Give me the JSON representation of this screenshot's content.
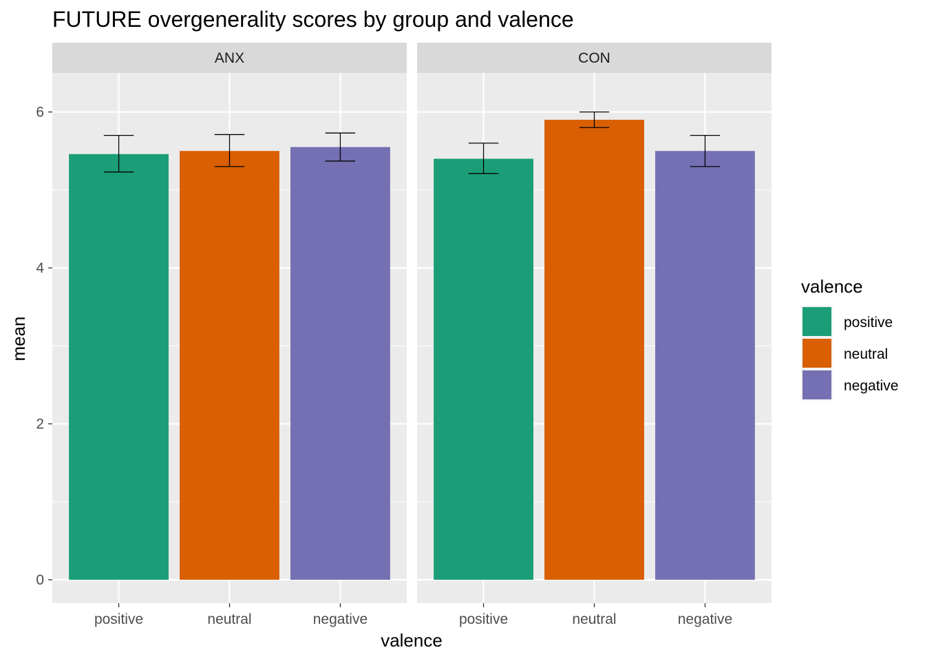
{
  "chart_data": {
    "type": "bar",
    "title": "FUTURE overgenerality scores by group and valence",
    "xlabel": "valence",
    "ylabel": "mean",
    "ylim": [
      -0.3,
      6.5
    ],
    "yticks": [
      0,
      2,
      4,
      6
    ],
    "categories": [
      "positive",
      "neutral",
      "negative"
    ],
    "colors": {
      "positive": "#1b9e77",
      "neutral": "#d95f02",
      "negative": "#7570b3"
    },
    "legend": {
      "title": "valence",
      "position": "right",
      "entries": [
        "positive",
        "neutral",
        "negative"
      ]
    },
    "facets": [
      {
        "name": "ANX",
        "values": [
          5.46,
          5.5,
          5.55
        ],
        "error_low": [
          5.23,
          5.3,
          5.37
        ],
        "error_high": [
          5.7,
          5.71,
          5.73
        ]
      },
      {
        "name": "CON",
        "values": [
          5.4,
          5.9,
          5.5
        ],
        "error_low": [
          5.21,
          5.8,
          5.3
        ],
        "error_high": [
          5.6,
          6.0,
          5.7
        ]
      }
    ],
    "grid": true
  }
}
